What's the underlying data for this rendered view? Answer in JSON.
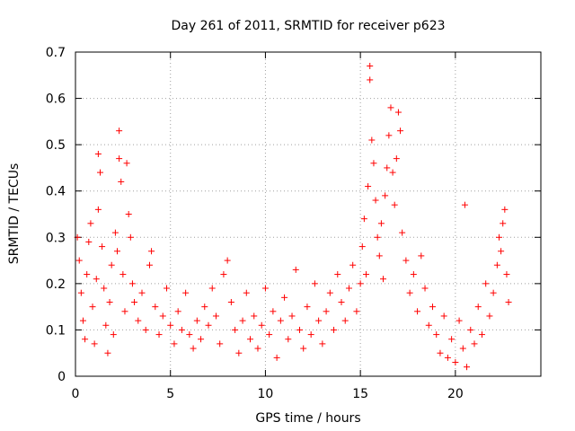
{
  "chart_data": {
    "type": "scatter",
    "title": "Day 261 of 2011, SRMTID for receiver p623",
    "xlabel": "GPS time / hours",
    "ylabel": "SRMTID / TECUs",
    "xlim": [
      0,
      24.5
    ],
    "ylim": [
      0,
      0.7
    ],
    "xticks": [
      0,
      5,
      10,
      15,
      20
    ],
    "xtick_labels": [
      "0",
      "5",
      "10",
      "15",
      "20"
    ],
    "yticks": [
      0,
      0.1,
      0.2,
      0.3,
      0.4,
      0.5,
      0.6,
      0.7
    ],
    "ytick_labels": [
      "0",
      "0.1",
      "0.2",
      "0.3",
      "0.4",
      "0.5",
      "0.6",
      "0.7"
    ],
    "grid": true,
    "marker": "+",
    "color": "#ff0000",
    "series": [
      {
        "name": "SRMTID",
        "points": [
          [
            0.1,
            0.3
          ],
          [
            0.2,
            0.25
          ],
          [
            0.3,
            0.18
          ],
          [
            0.4,
            0.12
          ],
          [
            0.5,
            0.08
          ],
          [
            0.6,
            0.22
          ],
          [
            0.7,
            0.29
          ],
          [
            0.8,
            0.33
          ],
          [
            0.9,
            0.15
          ],
          [
            1.0,
            0.07
          ],
          [
            1.1,
            0.21
          ],
          [
            1.2,
            0.36
          ],
          [
            1.2,
            0.48
          ],
          [
            1.3,
            0.44
          ],
          [
            1.4,
            0.28
          ],
          [
            1.5,
            0.19
          ],
          [
            1.6,
            0.11
          ],
          [
            1.7,
            0.05
          ],
          [
            1.8,
            0.16
          ],
          [
            1.9,
            0.24
          ],
          [
            2.0,
            0.09
          ],
          [
            2.1,
            0.31
          ],
          [
            2.2,
            0.27
          ],
          [
            2.3,
            0.53
          ],
          [
            2.3,
            0.47
          ],
          [
            2.4,
            0.42
          ],
          [
            2.5,
            0.22
          ],
          [
            2.6,
            0.14
          ],
          [
            2.7,
            0.46
          ],
          [
            2.8,
            0.35
          ],
          [
            2.9,
            0.3
          ],
          [
            3.0,
            0.2
          ],
          [
            3.1,
            0.16
          ],
          [
            3.3,
            0.12
          ],
          [
            3.5,
            0.18
          ],
          [
            3.7,
            0.1
          ],
          [
            3.9,
            0.24
          ],
          [
            4.0,
            0.27
          ],
          [
            4.2,
            0.15
          ],
          [
            4.4,
            0.09
          ],
          [
            4.6,
            0.13
          ],
          [
            4.8,
            0.19
          ],
          [
            5.0,
            0.11
          ],
          [
            5.2,
            0.07
          ],
          [
            5.4,
            0.14
          ],
          [
            5.6,
            0.1
          ],
          [
            5.8,
            0.18
          ],
          [
            6.0,
            0.09
          ],
          [
            6.2,
            0.06
          ],
          [
            6.4,
            0.12
          ],
          [
            6.6,
            0.08
          ],
          [
            6.8,
            0.15
          ],
          [
            7.0,
            0.11
          ],
          [
            7.2,
            0.19
          ],
          [
            7.4,
            0.13
          ],
          [
            7.6,
            0.07
          ],
          [
            7.8,
            0.22
          ],
          [
            8.0,
            0.25
          ],
          [
            8.2,
            0.16
          ],
          [
            8.4,
            0.1
          ],
          [
            8.6,
            0.05
          ],
          [
            8.8,
            0.12
          ],
          [
            9.0,
            0.18
          ],
          [
            9.2,
            0.08
          ],
          [
            9.4,
            0.13
          ],
          [
            9.6,
            0.06
          ],
          [
            9.8,
            0.11
          ],
          [
            10.0,
            0.19
          ],
          [
            10.2,
            0.09
          ],
          [
            10.4,
            0.14
          ],
          [
            10.6,
            0.04
          ],
          [
            10.8,
            0.12
          ],
          [
            11.0,
            0.17
          ],
          [
            11.2,
            0.08
          ],
          [
            11.4,
            0.13
          ],
          [
            11.6,
            0.23
          ],
          [
            11.8,
            0.1
          ],
          [
            12.0,
            0.06
          ],
          [
            12.2,
            0.15
          ],
          [
            12.4,
            0.09
          ],
          [
            12.6,
            0.2
          ],
          [
            12.8,
            0.12
          ],
          [
            13.0,
            0.07
          ],
          [
            13.2,
            0.14
          ],
          [
            13.4,
            0.18
          ],
          [
            13.6,
            0.1
          ],
          [
            13.8,
            0.22
          ],
          [
            14.0,
            0.16
          ],
          [
            14.2,
            0.12
          ],
          [
            14.4,
            0.19
          ],
          [
            14.6,
            0.24
          ],
          [
            14.8,
            0.14
          ],
          [
            15.0,
            0.2
          ],
          [
            15.1,
            0.28
          ],
          [
            15.2,
            0.34
          ],
          [
            15.3,
            0.22
          ],
          [
            15.4,
            0.41
          ],
          [
            15.5,
            0.67
          ],
          [
            15.5,
            0.64
          ],
          [
            15.6,
            0.51
          ],
          [
            15.7,
            0.46
          ],
          [
            15.8,
            0.38
          ],
          [
            15.9,
            0.3
          ],
          [
            16.0,
            0.26
          ],
          [
            16.1,
            0.33
          ],
          [
            16.2,
            0.21
          ],
          [
            16.3,
            0.39
          ],
          [
            16.4,
            0.45
          ],
          [
            16.5,
            0.52
          ],
          [
            16.6,
            0.58
          ],
          [
            16.7,
            0.44
          ],
          [
            16.8,
            0.37
          ],
          [
            16.9,
            0.47
          ],
          [
            17.0,
            0.57
          ],
          [
            17.1,
            0.53
          ],
          [
            17.2,
            0.31
          ],
          [
            17.4,
            0.25
          ],
          [
            17.6,
            0.18
          ],
          [
            17.8,
            0.22
          ],
          [
            18.0,
            0.14
          ],
          [
            18.2,
            0.26
          ],
          [
            18.4,
            0.19
          ],
          [
            18.6,
            0.11
          ],
          [
            18.8,
            0.15
          ],
          [
            19.0,
            0.09
          ],
          [
            19.2,
            0.05
          ],
          [
            19.4,
            0.13
          ],
          [
            19.6,
            0.04
          ],
          [
            19.8,
            0.08
          ],
          [
            20.0,
            0.03
          ],
          [
            20.2,
            0.12
          ],
          [
            20.4,
            0.06
          ],
          [
            20.5,
            0.37
          ],
          [
            20.6,
            0.02
          ],
          [
            20.8,
            0.1
          ],
          [
            21.0,
            0.07
          ],
          [
            21.2,
            0.15
          ],
          [
            21.4,
            0.09
          ],
          [
            21.6,
            0.2
          ],
          [
            21.8,
            0.13
          ],
          [
            22.0,
            0.18
          ],
          [
            22.2,
            0.24
          ],
          [
            22.3,
            0.3
          ],
          [
            22.4,
            0.27
          ],
          [
            22.5,
            0.33
          ],
          [
            22.6,
            0.36
          ],
          [
            22.7,
            0.22
          ],
          [
            22.8,
            0.16
          ]
        ]
      }
    ]
  }
}
